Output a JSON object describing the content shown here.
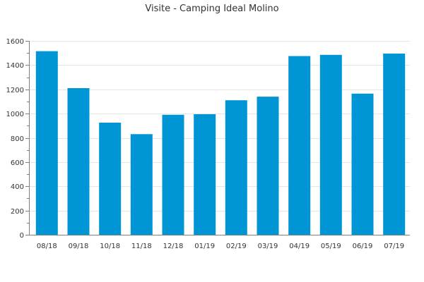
{
  "chart_data": {
    "type": "bar",
    "title": "Visite - Camping Ideal Molino",
    "xlabel": "",
    "ylabel": "",
    "categories": [
      "08/18",
      "09/18",
      "10/18",
      "11/18",
      "12/18",
      "01/19",
      "02/19",
      "03/19",
      "04/19",
      "05/19",
      "06/19",
      "07/19"
    ],
    "values": [
      1515,
      1210,
      925,
      830,
      990,
      995,
      1110,
      1140,
      1475,
      1485,
      1165,
      1495
    ],
    "ylim": [
      0,
      1600
    ],
    "yticks": [
      0,
      200,
      400,
      600,
      800,
      1000,
      1200,
      1400,
      1600
    ],
    "grid": true,
    "legend": "none",
    "bar_color": "#0096d6"
  }
}
